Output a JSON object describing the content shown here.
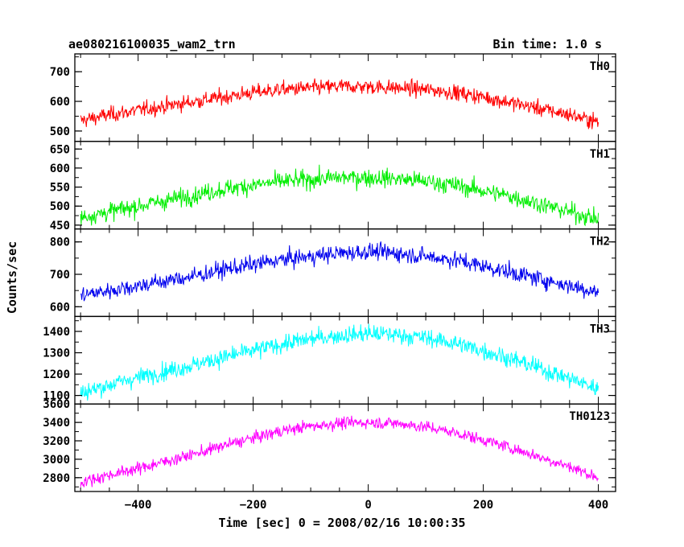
{
  "chart_data": {
    "type": "line",
    "title": "ae080216100035_wam2_trn",
    "bin_time_label": "Bin time: 1.0 s",
    "xlabel": "Time [sec] 0 = 2008/02/16 10:00:35",
    "ylabel": "Counts/sec",
    "xlim": [
      -510,
      430
    ],
    "xticks": [
      -400,
      -200,
      0,
      200,
      400
    ],
    "xtick_labels": [
      "−400",
      "−200",
      "0",
      "200",
      "400"
    ],
    "grid": false,
    "x": [
      -500,
      -450,
      -400,
      -350,
      -300,
      -250,
      -200,
      -150,
      -100,
      -50,
      0,
      50,
      100,
      150,
      200,
      250,
      300,
      350,
      400
    ],
    "panels": [
      {
        "name": "TH0",
        "color": "#ff0000",
        "ylim": [
          465,
          760
        ],
        "yticks": [
          500,
          600,
          700
        ],
        "ytick_labels": [
          "500",
          "600",
          "700"
        ],
        "values": [
          535,
          555,
          570,
          585,
          600,
          615,
          630,
          640,
          645,
          650,
          650,
          645,
          640,
          630,
          615,
          595,
          575,
          555,
          530
        ],
        "noise": 22
      },
      {
        "name": "TH1",
        "color": "#00ee00",
        "ylim": [
          440,
          670
        ],
        "yticks": [
          450,
          500,
          550,
          600,
          650
        ],
        "ytick_labels": [
          "450",
          "500",
          "550",
          "600",
          "650"
        ],
        "values": [
          470,
          485,
          500,
          515,
          530,
          545,
          555,
          565,
          570,
          575,
          575,
          572,
          565,
          555,
          540,
          525,
          505,
          485,
          465
        ],
        "noise": 20
      },
      {
        "name": "TH2",
        "color": "#0000ee",
        "ylim": [
          570,
          840
        ],
        "yticks": [
          600,
          700,
          800
        ],
        "ytick_labels": [
          "600",
          "700",
          "800"
        ],
        "values": [
          635,
          650,
          665,
          680,
          695,
          715,
          730,
          745,
          755,
          765,
          770,
          765,
          755,
          745,
          725,
          705,
          685,
          665,
          645
        ],
        "noise": 22
      },
      {
        "name": "TH3",
        "color": "#00ffff",
        "ylim": [
          1060,
          1470
        ],
        "yticks": [
          1100,
          1200,
          1300,
          1400
        ],
        "ytick_labels": [
          "1100",
          "1200",
          "1300",
          "1400"
        ],
        "values": [
          1110,
          1150,
          1185,
          1215,
          1245,
          1280,
          1310,
          1340,
          1365,
          1380,
          1390,
          1385,
          1370,
          1345,
          1310,
          1270,
          1225,
          1180,
          1130
        ],
        "noise": 35
      },
      {
        "name": "TH0123",
        "color": "#ff00ff",
        "ylim": [
          2650,
          3600
        ],
        "yticks": [
          2800,
          3000,
          3200,
          3400,
          3600
        ],
        "ytick_labels": [
          "2800",
          "3000",
          "3200",
          "3400",
          "3600"
        ],
        "values": [
          2750,
          2830,
          2900,
          2980,
          3060,
          3150,
          3230,
          3310,
          3360,
          3390,
          3400,
          3390,
          3350,
          3290,
          3210,
          3120,
          3020,
          2920,
          2800
        ],
        "noise": 55
      }
    ]
  }
}
